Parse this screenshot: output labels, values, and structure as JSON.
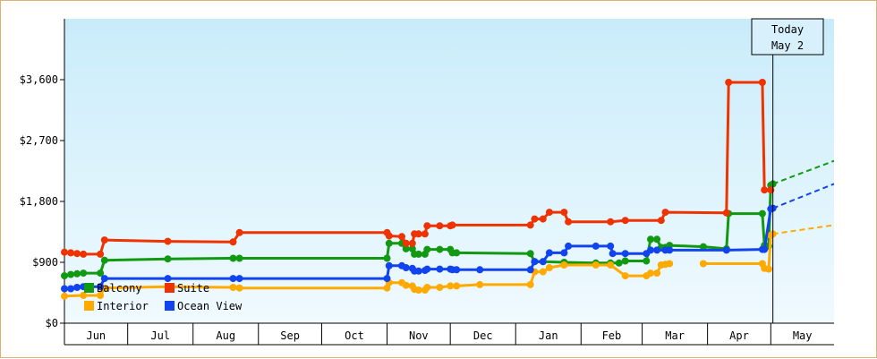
{
  "chart_data": {
    "type": "line",
    "title": "",
    "xlabel": "",
    "ylabel": "",
    "ylim": [
      0,
      4500
    ],
    "yticks": [
      0,
      900,
      1800,
      2700,
      3600
    ],
    "ytick_labels": [
      "$0",
      "$900",
      "$1,800",
      "$2,700",
      "$3,600"
    ],
    "xlim": [
      "2023-06-01",
      "2024-05-31"
    ],
    "months": [
      {
        "label": "Jun",
        "start": "2023-06-01"
      },
      {
        "label": "Jul",
        "start": "2023-07-01"
      },
      {
        "label": "Aug",
        "start": "2023-08-01"
      },
      {
        "label": "Sep",
        "start": "2023-09-01"
      },
      {
        "label": "Oct",
        "start": "2023-10-01"
      },
      {
        "label": "Nov",
        "start": "2023-11-01"
      },
      {
        "label": "Dec",
        "start": "2023-12-01"
      },
      {
        "label": "Jan",
        "start": "2024-01-01"
      },
      {
        "label": "Feb",
        "start": "2024-02-01"
      },
      {
        "label": "Mar",
        "start": "2024-03-01"
      },
      {
        "label": "Apr",
        "start": "2024-04-01"
      },
      {
        "label": "May",
        "start": "2024-05-01"
      }
    ],
    "today": {
      "line1": "Today",
      "line2": "May 2",
      "date": "2024-05-02"
    },
    "background_gradient": [
      "#c9ecfa",
      "#f0faff"
    ],
    "legend_placement": "bottom-left",
    "series": [
      {
        "name": "Balcony",
        "color": "#119911",
        "points": [
          [
            "2023-06-01",
            700
          ],
          [
            "2023-06-04",
            720
          ],
          [
            "2023-06-07",
            730
          ],
          [
            "2023-06-10",
            740
          ],
          [
            "2023-06-18",
            740
          ],
          [
            "2023-06-20",
            930
          ],
          [
            "2023-07-20",
            950
          ],
          [
            "2023-08-20",
            960
          ],
          [
            "2023-08-23",
            960
          ],
          [
            "2023-11-01",
            960
          ],
          [
            "2023-11-02",
            1180
          ],
          [
            "2023-11-08",
            1180
          ],
          [
            "2023-11-10",
            1100
          ],
          [
            "2023-11-13",
            1100
          ],
          [
            "2023-11-14",
            1020
          ],
          [
            "2023-11-16",
            1020
          ],
          [
            "2023-11-19",
            1020
          ],
          [
            "2023-11-20",
            1090
          ],
          [
            "2023-11-26",
            1090
          ],
          [
            "2023-12-01",
            1090
          ],
          [
            "2023-12-02",
            1040
          ],
          [
            "2023-12-04",
            1040
          ],
          [
            "2024-01-08",
            1030
          ],
          [
            "2024-01-10",
            910
          ],
          [
            "2024-01-14",
            910
          ],
          [
            "2024-01-24",
            900
          ],
          [
            "2024-02-08",
            890
          ],
          [
            "2024-02-15",
            890
          ],
          [
            "2024-02-19",
            890
          ],
          [
            "2024-02-22",
            920
          ],
          [
            "2024-03-03",
            920
          ],
          [
            "2024-03-05",
            1240
          ],
          [
            "2024-03-08",
            1240
          ],
          [
            "2024-03-10",
            1120
          ],
          [
            "2024-03-12",
            1120
          ],
          [
            "2024-03-14",
            1150
          ],
          [
            "2024-03-30",
            1130
          ],
          [
            "2024-04-10",
            1100
          ],
          [
            "2024-04-11",
            1620
          ],
          [
            "2024-04-27",
            1620
          ],
          [
            "2024-04-28",
            1150
          ],
          [
            "2024-04-30",
            1140
          ],
          [
            "2024-05-01",
            2040
          ],
          [
            "2024-05-02",
            2060
          ]
        ],
        "forecast": [
          [
            "2024-05-02",
            2060
          ],
          [
            "2024-05-31",
            2400
          ]
        ]
      },
      {
        "name": "Suite",
        "color": "#ee3300",
        "points": [
          [
            "2023-06-01",
            1050
          ],
          [
            "2023-06-04",
            1040
          ],
          [
            "2023-06-07",
            1030
          ],
          [
            "2023-06-10",
            1020
          ],
          [
            "2023-06-18",
            1020
          ],
          [
            "2023-06-20",
            1230
          ],
          [
            "2023-07-20",
            1210
          ],
          [
            "2023-08-20",
            1200
          ],
          [
            "2023-08-23",
            1340
          ],
          [
            "2023-11-01",
            1340
          ],
          [
            "2023-11-02",
            1290
          ],
          [
            "2023-11-08",
            1280
          ],
          [
            "2023-11-10",
            1180
          ],
          [
            "2023-11-13",
            1180
          ],
          [
            "2023-11-14",
            1320
          ],
          [
            "2023-11-16",
            1320
          ],
          [
            "2023-11-19",
            1320
          ],
          [
            "2023-11-20",
            1440
          ],
          [
            "2023-11-26",
            1440
          ],
          [
            "2023-12-01",
            1440
          ],
          [
            "2023-12-02",
            1450
          ],
          [
            "2024-01-08",
            1450
          ],
          [
            "2024-01-10",
            1540
          ],
          [
            "2024-01-14",
            1540
          ],
          [
            "2024-01-17",
            1640
          ],
          [
            "2024-01-24",
            1640
          ],
          [
            "2024-01-26",
            1500
          ],
          [
            "2024-02-15",
            1500
          ],
          [
            "2024-02-22",
            1520
          ],
          [
            "2024-03-10",
            1520
          ],
          [
            "2024-03-12",
            1640
          ],
          [
            "2024-04-10",
            1630
          ],
          [
            "2024-04-11",
            3560
          ],
          [
            "2024-04-27",
            3560
          ],
          [
            "2024-04-28",
            1970
          ],
          [
            "2024-05-01",
            1970
          ]
        ],
        "forecast": []
      },
      {
        "name": "Interior",
        "color": "#ffaa00",
        "points": [
          [
            "2023-06-01",
            400
          ],
          [
            "2023-06-10",
            410
          ],
          [
            "2023-06-18",
            410
          ],
          [
            "2023-06-20",
            520
          ],
          [
            "2023-07-20",
            540
          ],
          [
            "2023-08-20",
            530
          ],
          [
            "2023-08-23",
            520
          ],
          [
            "2023-11-01",
            520
          ],
          [
            "2023-11-02",
            600
          ],
          [
            "2023-11-08",
            600
          ],
          [
            "2023-11-10",
            560
          ],
          [
            "2023-11-13",
            550
          ],
          [
            "2023-11-14",
            500
          ],
          [
            "2023-11-16",
            490
          ],
          [
            "2023-11-19",
            490
          ],
          [
            "2023-11-20",
            530
          ],
          [
            "2023-11-26",
            530
          ],
          [
            "2023-12-01",
            550
          ],
          [
            "2023-12-04",
            550
          ],
          [
            "2023-12-15",
            570
          ],
          [
            "2024-01-08",
            570
          ],
          [
            "2024-01-10",
            760
          ],
          [
            "2024-01-14",
            760
          ],
          [
            "2024-01-17",
            820
          ],
          [
            "2024-01-24",
            860
          ],
          [
            "2024-02-08",
            860
          ],
          [
            "2024-02-15",
            860
          ],
          [
            "2024-02-22",
            700
          ],
          [
            "2024-03-03",
            700
          ],
          [
            "2024-03-05",
            740
          ],
          [
            "2024-03-08",
            740
          ],
          [
            "2024-03-10",
            860
          ],
          [
            "2024-03-12",
            870
          ],
          [
            "2024-03-14",
            880
          ]
        ],
        "points2": [
          [
            "2024-03-30",
            880
          ],
          [
            "2024-04-27",
            880
          ],
          [
            "2024-04-28",
            810
          ],
          [
            "2024-04-30",
            800
          ],
          [
            "2024-05-01",
            1300
          ],
          [
            "2024-05-02",
            1320
          ]
        ],
        "forecast": [
          [
            "2024-05-02",
            1320
          ],
          [
            "2024-05-31",
            1450
          ]
        ]
      },
      {
        "name": "Ocean View",
        "color": "#1144ee",
        "points": [
          [
            "2023-06-01",
            510
          ],
          [
            "2023-06-04",
            510
          ],
          [
            "2023-06-07",
            530
          ],
          [
            "2023-06-10",
            540
          ],
          [
            "2023-06-18",
            540
          ],
          [
            "2023-06-20",
            660
          ],
          [
            "2023-07-20",
            660
          ],
          [
            "2023-08-20",
            660
          ],
          [
            "2023-08-23",
            660
          ],
          [
            "2023-11-01",
            660
          ],
          [
            "2023-11-02",
            850
          ],
          [
            "2023-11-08",
            850
          ],
          [
            "2023-11-10",
            820
          ],
          [
            "2023-11-13",
            810
          ],
          [
            "2023-11-14",
            770
          ],
          [
            "2023-11-16",
            770
          ],
          [
            "2023-11-19",
            780
          ],
          [
            "2023-11-20",
            800
          ],
          [
            "2023-11-26",
            800
          ],
          [
            "2023-12-01",
            800
          ],
          [
            "2023-12-02",
            790
          ],
          [
            "2023-12-04",
            790
          ],
          [
            "2023-12-15",
            790
          ],
          [
            "2024-01-08",
            790
          ],
          [
            "2024-01-10",
            910
          ],
          [
            "2024-01-14",
            910
          ],
          [
            "2024-01-17",
            1040
          ],
          [
            "2024-01-24",
            1040
          ],
          [
            "2024-01-26",
            1140
          ],
          [
            "2024-02-08",
            1140
          ],
          [
            "2024-02-15",
            1140
          ],
          [
            "2024-02-16",
            1030
          ],
          [
            "2024-02-22",
            1030
          ],
          [
            "2024-03-03",
            1030
          ],
          [
            "2024-03-05",
            1080
          ],
          [
            "2024-03-08",
            1080
          ],
          [
            "2024-03-12",
            1080
          ],
          [
            "2024-03-14",
            1080
          ],
          [
            "2024-04-10",
            1080
          ],
          [
            "2024-04-27",
            1090
          ],
          [
            "2024-04-28",
            1090
          ],
          [
            "2024-05-01",
            1690
          ],
          [
            "2024-05-02",
            1700
          ]
        ],
        "forecast": [
          [
            "2024-05-02",
            1700
          ],
          [
            "2024-05-31",
            2060
          ]
        ]
      }
    ],
    "legend": [
      {
        "name": "Balcony",
        "color": "#119911"
      },
      {
        "name": "Suite",
        "color": "#ee3300"
      },
      {
        "name": "Interior",
        "color": "#ffaa00"
      },
      {
        "name": "Ocean View",
        "color": "#1144ee"
      }
    ]
  }
}
